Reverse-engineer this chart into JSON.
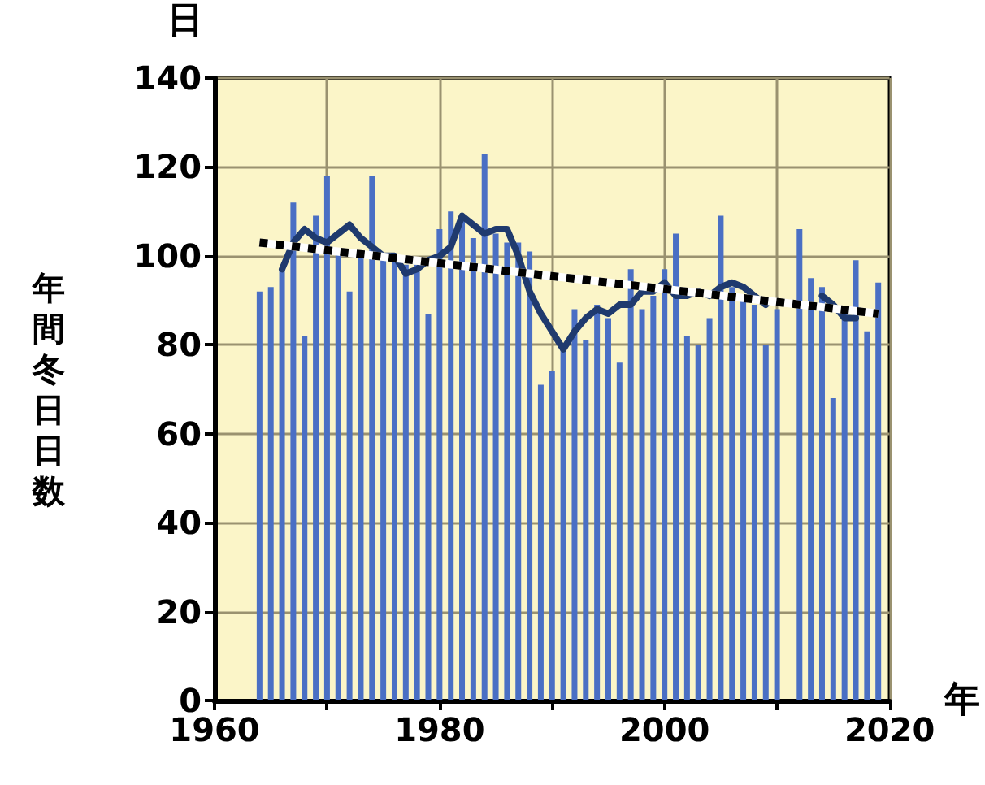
{
  "chart_data": {
    "type": "bar",
    "ylabel": "年間冬日日数",
    "xlabel": "年",
    "annotations": [
      "日"
    ],
    "x": [
      1964,
      1965,
      1966,
      1967,
      1968,
      1969,
      1970,
      1971,
      1972,
      1973,
      1974,
      1975,
      1976,
      1977,
      1978,
      1979,
      1980,
      1981,
      1982,
      1983,
      1984,
      1985,
      1986,
      1987,
      1988,
      1989,
      1990,
      1991,
      1992,
      1993,
      1994,
      1995,
      1996,
      1997,
      1998,
      1999,
      2000,
      2001,
      2002,
      2003,
      2004,
      2005,
      2006,
      2007,
      2008,
      2009,
      2010,
      2011,
      2012,
      2013,
      2014,
      2015,
      2016,
      2017,
      2018,
      2019
    ],
    "series": [
      {
        "color": "#4a6fc4",
        "values": [
          92,
          93,
          97,
          112,
          82,
          109,
          118,
          101,
          92,
          100,
          118,
          100,
          100,
          98,
          98,
          87,
          106,
          110,
          108,
          104,
          123,
          105,
          103,
          103,
          101,
          71,
          74,
          80,
          88,
          81,
          89,
          86,
          76,
          97,
          88,
          91,
          97,
          105,
          82,
          80,
          86,
          109,
          93,
          91,
          89,
          80,
          88,
          null,
          106,
          95,
          93,
          68,
          88,
          99,
          83,
          94
        ]
      },
      {
        "type": "line",
        "color": "#1f3a6e",
        "x": [
          1966,
          1967,
          1968,
          1969,
          1970,
          1971,
          1972,
          1973,
          1974,
          1975,
          1976,
          1977,
          1978,
          1979,
          1980,
          1981,
          1982,
          1983,
          1984,
          1985,
          1986,
          1987,
          1988,
          1989,
          1990,
          1991,
          1992,
          1993,
          1994,
          1995,
          1996,
          1997,
          1998,
          1999,
          2000,
          2001,
          2002,
          2003,
          2004,
          2005,
          2006,
          2007,
          2008,
          2009,
          2010,
          2011,
          2012,
          2013,
          2014,
          2015,
          2016,
          2017
        ],
        "values": [
          97,
          103,
          106,
          104,
          103,
          105,
          107,
          104,
          102,
          100,
          100,
          96,
          97,
          99,
          100,
          102,
          109,
          107,
          105,
          106,
          106,
          100,
          92,
          87,
          83,
          79,
          83,
          86,
          88,
          87,
          89,
          89,
          92,
          92,
          94,
          91,
          91,
          92,
          91,
          93,
          94,
          93,
          91,
          89,
          null,
          null,
          null,
          null,
          91,
          89,
          86,
          86
        ]
      },
      {
        "type": "line",
        "color": "#000000",
        "line_style": "dotted",
        "x": [
          1964,
          2019
        ],
        "values": [
          103,
          87
        ]
      }
    ],
    "xlim": [
      1960,
      2020
    ],
    "xticks": [
      1960,
      {
        "value": 1970,
        "label": null
      },
      1980,
      {
        "value": 1990,
        "label": null
      },
      2000,
      {
        "value": 2010,
        "label": null
      },
      2020
    ],
    "ylim": [
      0,
      140
    ],
    "yticks": [
      0,
      20,
      40,
      60,
      80,
      100,
      120,
      140
    ],
    "grid": true
  }
}
